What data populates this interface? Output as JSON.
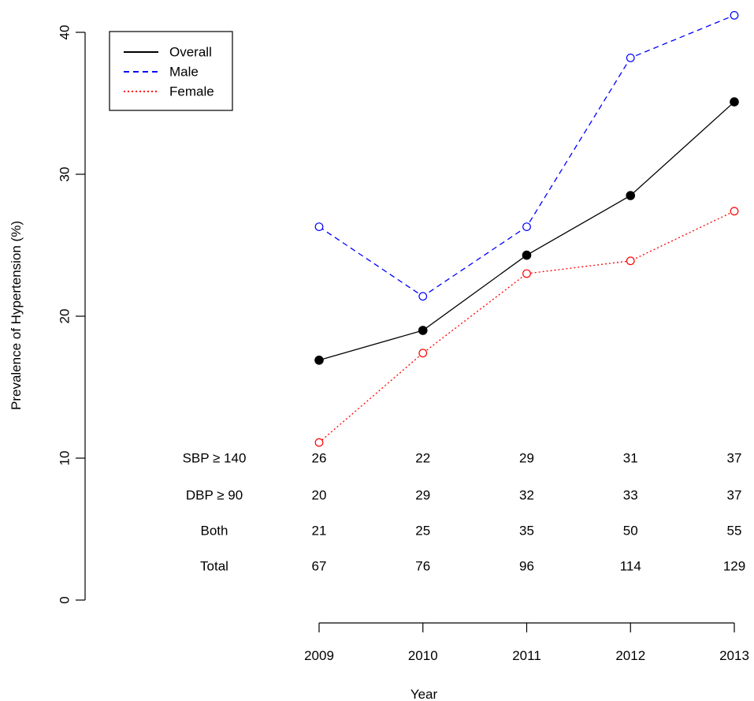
{
  "chart_data": {
    "type": "line",
    "title": "",
    "xlabel": "Year",
    "ylabel": "Prevalence of Hypertension (%)",
    "x": [
      2009,
      2010,
      2011,
      2012,
      2013
    ],
    "x_tick_labels": [
      "2009",
      "2010",
      "2011",
      "2012",
      "2013"
    ],
    "ylim": [
      0,
      40
    ],
    "y_ticks": [
      0,
      10,
      20,
      30,
      40
    ],
    "y_tick_labels": [
      "0",
      "10",
      "20",
      "30",
      "40"
    ],
    "grid": false,
    "legend_position": "top-left",
    "series": [
      {
        "name": "Overall",
        "values": [
          16.9,
          19.0,
          24.3,
          28.5,
          35.1
        ],
        "color": "#000000",
        "line_style": "solid",
        "marker": "filled-circle"
      },
      {
        "name": "Male",
        "values": [
          26.3,
          21.4,
          26.3,
          38.2,
          41.2
        ],
        "color": "#0000ff",
        "line_style": "dashed",
        "marker": "open-circle"
      },
      {
        "name": "Female",
        "values": [
          11.1,
          17.4,
          23.0,
          23.9,
          27.4
        ],
        "color": "#ff0000",
        "line_style": "dotted",
        "marker": "open-circle"
      }
    ],
    "table": {
      "rows": [
        {
          "label": "SBP ≥ 140",
          "values": [
            "26",
            "22",
            "29",
            "31",
            "37"
          ]
        },
        {
          "label": "DBP ≥ 90",
          "values": [
            "20",
            "29",
            "32",
            "33",
            "37"
          ]
        },
        {
          "label": "Both",
          "values": [
            "21",
            "25",
            "35",
            "50",
            "55"
          ]
        },
        {
          "label": "Total",
          "values": [
            "67",
            "76",
            "96",
            "114",
            "129"
          ]
        }
      ]
    }
  }
}
